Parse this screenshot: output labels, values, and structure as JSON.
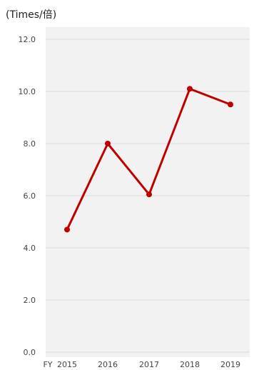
{
  "unit_label": "(Times/倍)",
  "x_prefix": "FY",
  "colors": {
    "line": "#c00000",
    "plot_bg": "#f2f2f2",
    "grid": "#d9d9d9"
  },
  "chart_data": {
    "type": "line",
    "title": "",
    "xlabel": "",
    "ylabel": "(Times/倍)",
    "categories": [
      "2015",
      "2016",
      "2017",
      "2018",
      "2019"
    ],
    "series": [
      {
        "values": [
          4.7,
          8.0,
          6.05,
          10.1,
          9.5
        ]
      }
    ],
    "ylim": [
      0,
      12
    ],
    "yticks": [
      "0.0",
      "2.0",
      "4.0",
      "6.0",
      "8.0",
      "10.0",
      "12.0"
    ],
    "grid": true,
    "legend": "none"
  }
}
